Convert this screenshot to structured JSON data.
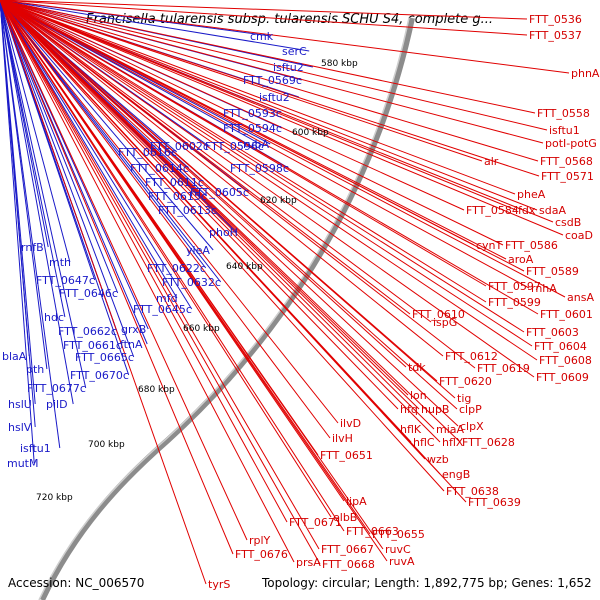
{
  "header": {
    "title": "Francisella tularensis subsp. tularensis SCHU S4, complete g..."
  },
  "footer": {
    "accession": "Accession: NC_006570",
    "summary": "Topology: circular; Length: 1,892,775 bp; Genes: 1,652"
  },
  "kbp_markers": [
    "580 kbp",
    "600 kbp",
    "620 kbp",
    "640 kbp",
    "660 kbp",
    "680 kbp",
    "700 kbp",
    "720 kbp"
  ],
  "reverse_strand_genes": [
    "cmk",
    "serC",
    "isftu2",
    "FTT_0569c",
    "isftu2",
    "FTT_0593c",
    "FTT_0594c",
    "rubA",
    "FTT_0616c",
    "FTT_0602c",
    "FTT_0596c",
    "FTT_0614c",
    "FTT_0598c",
    "FTT_0611c",
    "FTT_0615c",
    "FTT_0605c",
    "FTT_0613c",
    "phoH",
    "rnfB",
    "yleA",
    "mth",
    "FTT_0622c",
    "FTT_0647c",
    "FTT_0632c",
    "FTT_0646c",
    "mfd",
    "FTT_0645c",
    "hdc",
    "FTT_0662c",
    "grxB",
    "FTT_0661c",
    "ftnA",
    "blaA",
    "FTT_0665c",
    "pth",
    "FTT_0670c",
    "FTT_0677c",
    "hslU",
    "pilD",
    "hslV",
    "isftu1",
    "mutM"
  ],
  "forward_strand_genes": [
    "FTT_0536",
    "FTT_0537",
    "phnA",
    "FTT_0558",
    "isftu1",
    "potI-potG",
    "alr",
    "FTT_0568",
    "FTT_0571",
    "pheA",
    "FTT_0584",
    "fdx",
    "sdaA",
    "csdB",
    "coaD",
    "cynT",
    "FTT_0586",
    "aroA",
    "FTT_0589",
    "FTT_0597",
    "rnhA",
    "ansA",
    "FTT_0599",
    "FTT_0610",
    "FTT_0601",
    "ispG",
    "FTT_0603",
    "FTT_0604",
    "FTT_0612",
    "FTT_0608",
    "tdk",
    "FTT_0619",
    "FTT_0609",
    "FTT_0620",
    "lon",
    "tig",
    "hfq",
    "hupB",
    "clpP",
    "clpX",
    "miaA",
    "hflK",
    "ilvD",
    "hflC",
    "hflX",
    "FTT_0628",
    "ilvH",
    "wzb",
    "FTT_0651",
    "engB",
    "FTT_0638",
    "FTT_0639",
    "lipA",
    "elbB",
    "FTT_0671",
    "FTT_0663",
    "FTT_0655",
    "rplY",
    "ruvC",
    "FTT_0667",
    "FTT_0676",
    "prsA",
    "FTT_0668",
    "ruvA",
    "tyrS"
  ]
}
